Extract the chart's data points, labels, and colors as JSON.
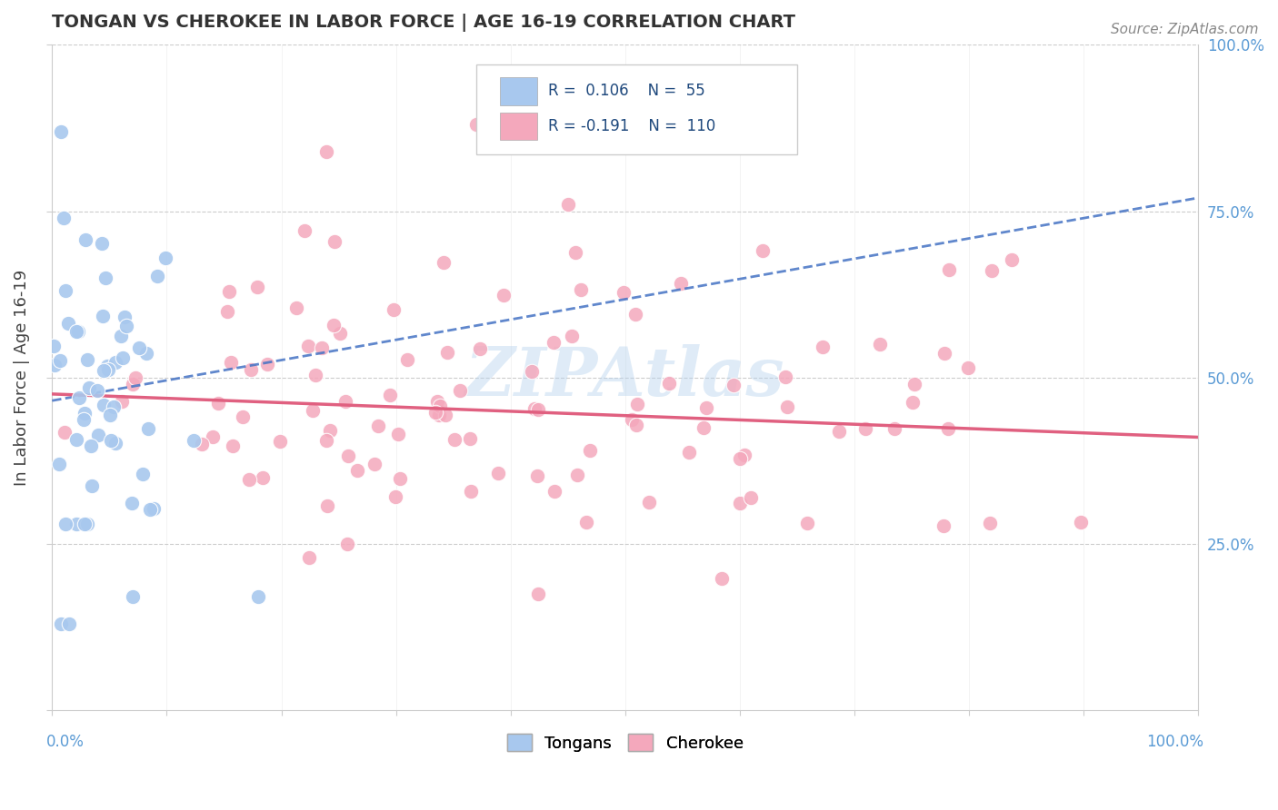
{
  "title": "TONGAN VS CHEROKEE IN LABOR FORCE | AGE 16-19 CORRELATION CHART",
  "source_text": "Source: ZipAtlas.com",
  "ylabel": "In Labor Force | Age 16-19",
  "xlim": [
    0.0,
    1.0
  ],
  "ylim": [
    0.0,
    1.0
  ],
  "ytick_labels_right": [
    "25.0%",
    "50.0%",
    "75.0%",
    "100.0%"
  ],
  "tongan_color": "#A8C8EE",
  "cherokee_color": "#F4A8BC",
  "tongan_line_color": "#4472C4",
  "cherokee_line_color": "#E06080",
  "background_color": "#FFFFFF",
  "grid_color": "#CCCCCC",
  "watermark": "ZIPAtlas",
  "axis_label_color": "#5B9BD5",
  "R_tongan": 0.106,
  "R_cherokee": -0.191,
  "N_tongan": 55,
  "N_cherokee": 110,
  "legend_R_tongan": "R =  0.106",
  "legend_N_tongan": "N =  55",
  "legend_R_cherokee": "R = -0.191",
  "legend_N_cherokee": "N =  110"
}
